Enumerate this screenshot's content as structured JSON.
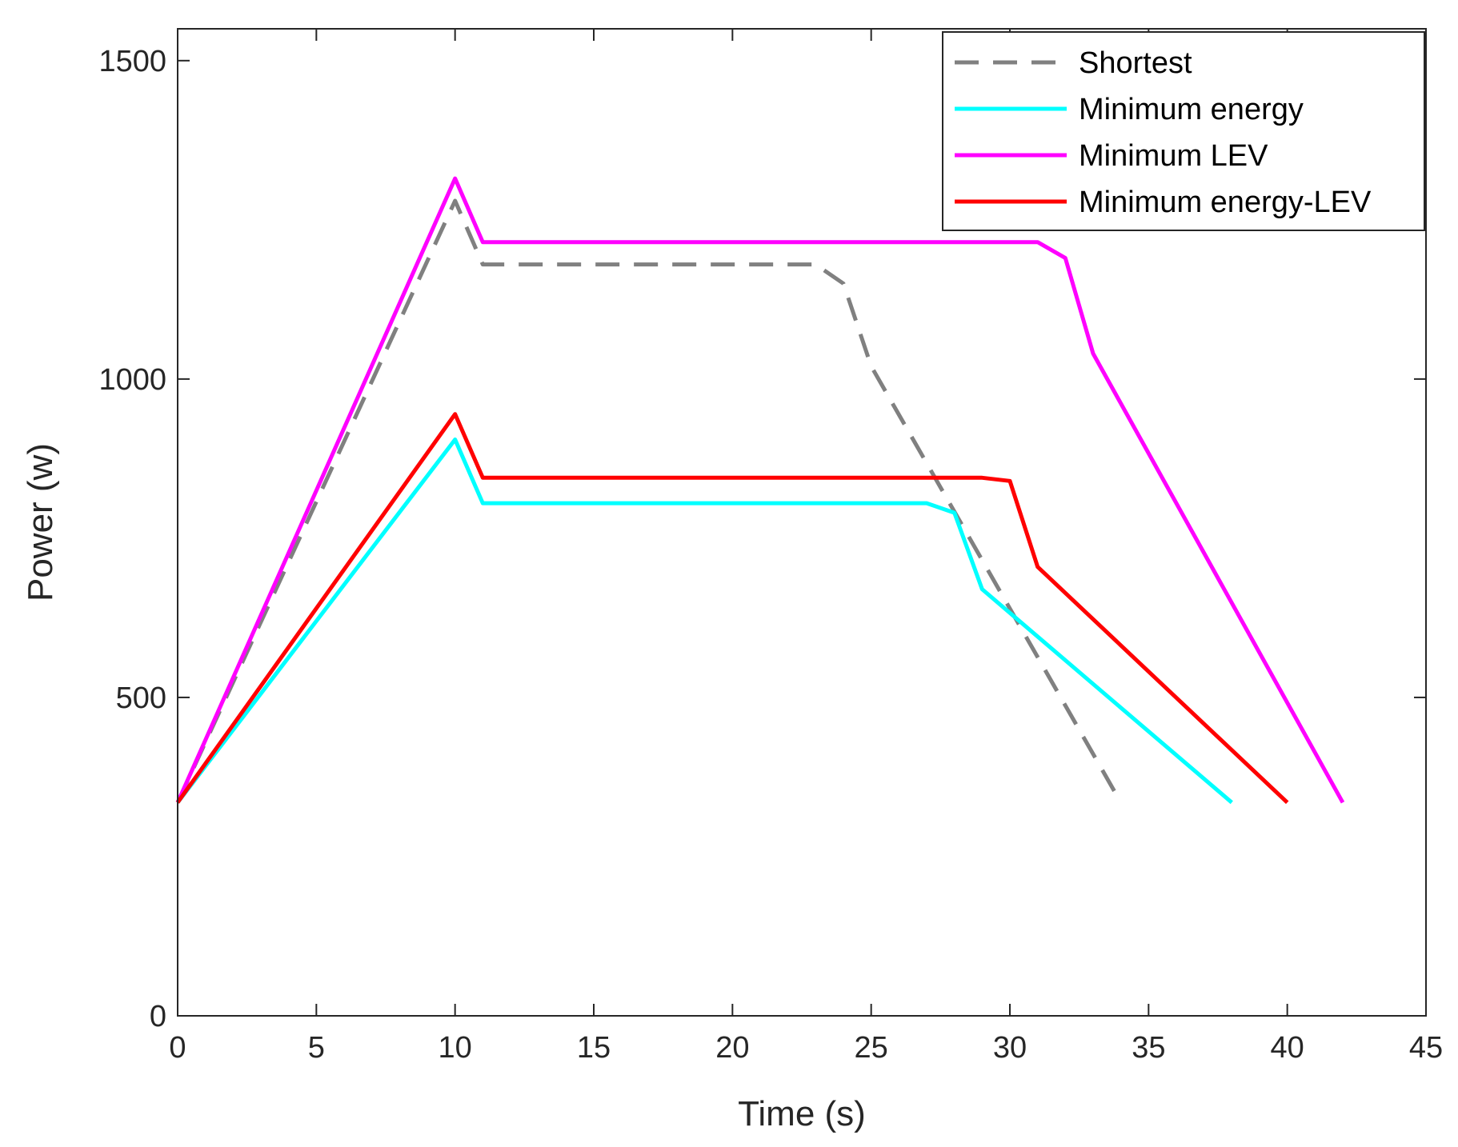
{
  "chart_data": {
    "type": "line",
    "title": "",
    "xlabel": "Time (s)",
    "ylabel": "Power (w)",
    "xlim": [
      0,
      45
    ],
    "ylim": [
      0,
      1550
    ],
    "xticks": [
      0,
      5,
      10,
      15,
      20,
      25,
      30,
      35,
      40,
      45
    ],
    "yticks": [
      0,
      500,
      1000,
      1500
    ],
    "grid": false,
    "legend_position": "top-right",
    "series": [
      {
        "name": "Shortest",
        "color": "#808080",
        "dash": true,
        "x": [
          0,
          10,
          11,
          23,
          24,
          25,
          34
        ],
        "y": [
          335,
          1280,
          1180,
          1180,
          1150,
          1020,
          335
        ]
      },
      {
        "name": "Minimum energy",
        "color": "#00FFFF",
        "dash": false,
        "x": [
          0,
          10,
          11,
          27,
          28,
          29,
          38
        ],
        "y": [
          335,
          905,
          805,
          805,
          790,
          670,
          335
        ]
      },
      {
        "name": "Minimum LEV",
        "color": "#FF00FF",
        "dash": false,
        "x": [
          0,
          10,
          11,
          31,
          32,
          33,
          42
        ],
        "y": [
          335,
          1315,
          1215,
          1215,
          1190,
          1040,
          335
        ]
      },
      {
        "name": "Minimum energy-LEV",
        "color": "#FF0000",
        "dash": false,
        "x": [
          0,
          10,
          11,
          29,
          30,
          31,
          40
        ],
        "y": [
          335,
          945,
          845,
          845,
          840,
          705,
          335
        ]
      }
    ]
  }
}
